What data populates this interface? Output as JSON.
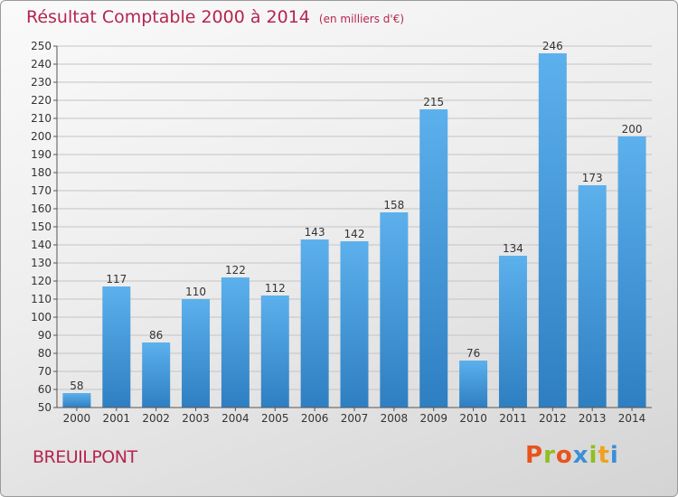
{
  "chart_data": {
    "type": "bar",
    "title": "Résultat Comptable 2000 à 2014",
    "subtitle": "(en milliers d'€)",
    "categories": [
      "2000",
      "2001",
      "2002",
      "2003",
      "2004",
      "2005",
      "2006",
      "2007",
      "2008",
      "2009",
      "2010",
      "2011",
      "2012",
      "2013",
      "2014"
    ],
    "values": [
      58,
      117,
      86,
      110,
      122,
      112,
      143,
      142,
      158,
      215,
      76,
      134,
      246,
      173,
      200
    ],
    "ylim": [
      50,
      250
    ],
    "ytick_step": 10,
    "grid": true,
    "bar_color": "#3d97d8"
  },
  "footer": {
    "commune": "BREUILPONT",
    "logo_text": "Proxiti",
    "logo_colors": [
      "#e8531d",
      "#8fbf22",
      "#e8531d",
      "#3b8fd6",
      "#8fbf22",
      "#f2a01f",
      "#3b8fd6"
    ]
  },
  "colors": {
    "title": "#b5254f"
  }
}
